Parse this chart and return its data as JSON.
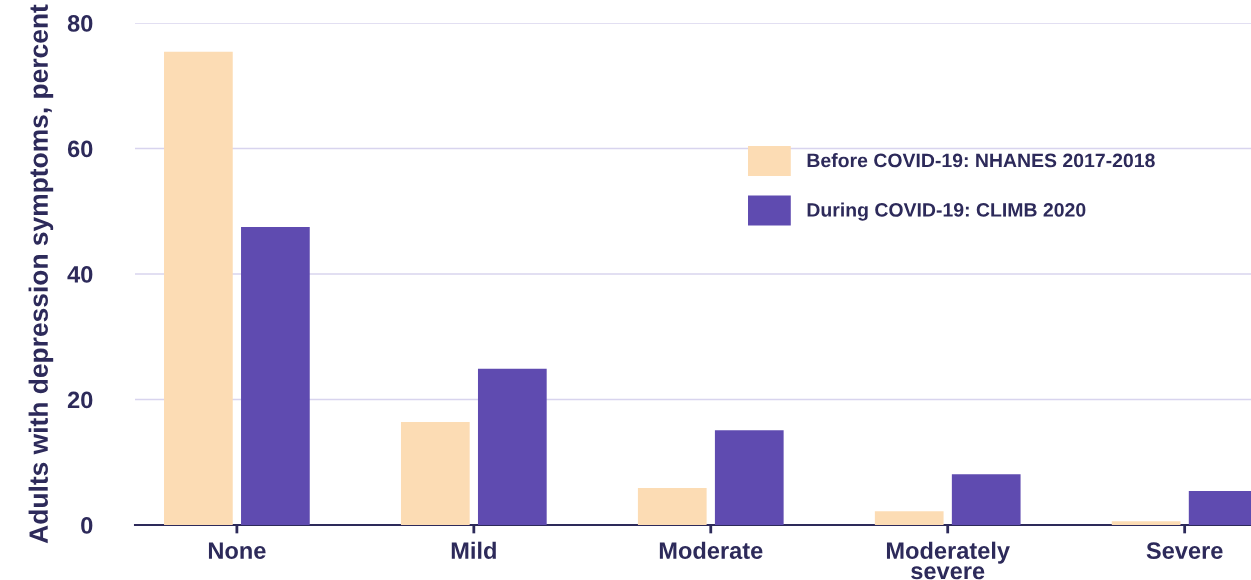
{
  "chart_data": {
    "type": "bar",
    "ylabel": "Adults with depression symptoms, percent",
    "categories": [
      "None",
      "Mild",
      "Moderate",
      "Moderately\nsevere",
      "Severe"
    ],
    "series": [
      {
        "name": "Before COVID-19: NHANES 2017-2018",
        "color": "#fcdcb4",
        "values": [
          75.4,
          16.4,
          5.9,
          2.2,
          0.6
        ]
      },
      {
        "name": "During COVID-19: CLIMB 2020",
        "color": "#5f4bb0",
        "values": [
          47.5,
          24.9,
          15.1,
          8.1,
          5.4
        ]
      }
    ],
    "ylim": [
      0,
      80
    ],
    "yticks": [
      0,
      20,
      40,
      60,
      80
    ],
    "grid": "y",
    "legend": "top right"
  }
}
